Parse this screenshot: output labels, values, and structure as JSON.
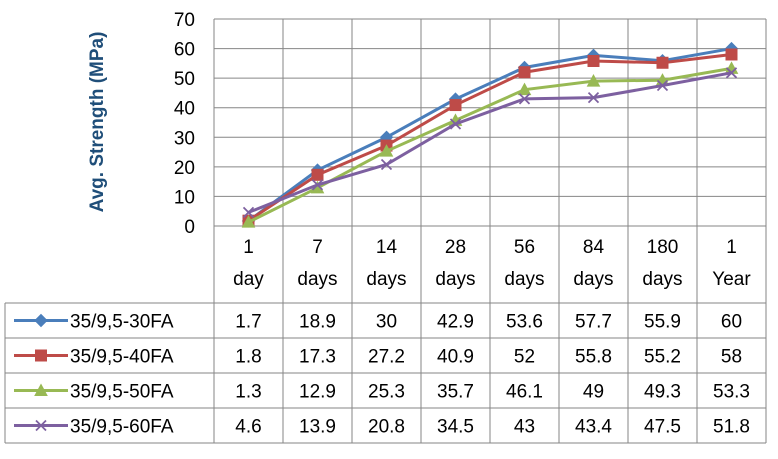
{
  "chart_data": {
    "type": "line",
    "title": "",
    "xlabel": "",
    "ylabel": "Avg. Strength (MPa)",
    "ylim": [
      0,
      70
    ],
    "yticks": [
      0,
      10,
      20,
      30,
      40,
      50,
      60,
      70
    ],
    "grid": true,
    "legend": "data-table",
    "categories": [
      [
        "1",
        "day"
      ],
      [
        "7",
        "days"
      ],
      [
        "14",
        "days"
      ],
      [
        "28",
        "days"
      ],
      [
        "56",
        "days"
      ],
      [
        "84",
        "days"
      ],
      [
        "180",
        "days"
      ],
      [
        "1",
        "Year"
      ]
    ],
    "series": [
      {
        "name": "35/9,5-30FA",
        "color": "#4a7ebb",
        "marker": "diamond",
        "values": [
          1.7,
          18.9,
          30,
          42.9,
          53.6,
          57.7,
          55.9,
          60
        ]
      },
      {
        "name": "35/9,5-40FA",
        "color": "#be4b48",
        "marker": "square",
        "values": [
          1.8,
          17.3,
          27.2,
          40.9,
          52,
          55.8,
          55.2,
          58
        ]
      },
      {
        "name": "35/9,5-50FA",
        "color": "#98b954",
        "marker": "triangle",
        "values": [
          1.3,
          12.9,
          25.3,
          35.7,
          46.1,
          49,
          49.3,
          53.3
        ]
      },
      {
        "name": "35/9,5-60FA",
        "color": "#7d60a0",
        "marker": "x",
        "values": [
          4.6,
          13.9,
          20.8,
          34.5,
          43,
          43.4,
          47.5,
          51.8
        ]
      }
    ]
  }
}
